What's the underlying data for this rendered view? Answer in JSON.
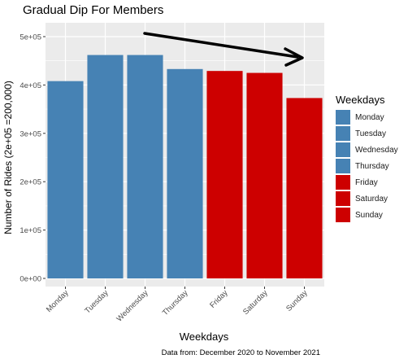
{
  "chart_data": {
    "type": "bar",
    "title": "Gradual Dip For Members",
    "xlabel": "Weekdays",
    "ylabel": "Number of Rides (2e+05 =200,000)",
    "caption": "Data from: December 2020 to November 2021",
    "categories": [
      "Monday",
      "Tuesday",
      "Wednesday",
      "Thursday",
      "Friday",
      "Saturday",
      "Sunday"
    ],
    "values": [
      408000,
      462000,
      462000,
      433000,
      429000,
      425000,
      373000
    ],
    "colors": [
      "#4682B4",
      "#4682B4",
      "#4682B4",
      "#4682B4",
      "#CD0000",
      "#CD0000",
      "#CD0000"
    ],
    "ylim": [
      0,
      500000
    ],
    "yticks": [
      0,
      100000,
      200000,
      300000,
      400000,
      500000
    ],
    "ytick_labels": [
      "0e+00",
      "1e+05",
      "2e+05",
      "3e+05",
      "4e+05",
      "5e+05"
    ],
    "grid": true,
    "legend": {
      "title": "Weekdays",
      "placement": "right",
      "entries": [
        "Monday",
        "Tuesday",
        "Wednesday",
        "Thursday",
        "Friday",
        "Saturday",
        "Sunday"
      ]
    },
    "annotation": "downward-arrow"
  }
}
